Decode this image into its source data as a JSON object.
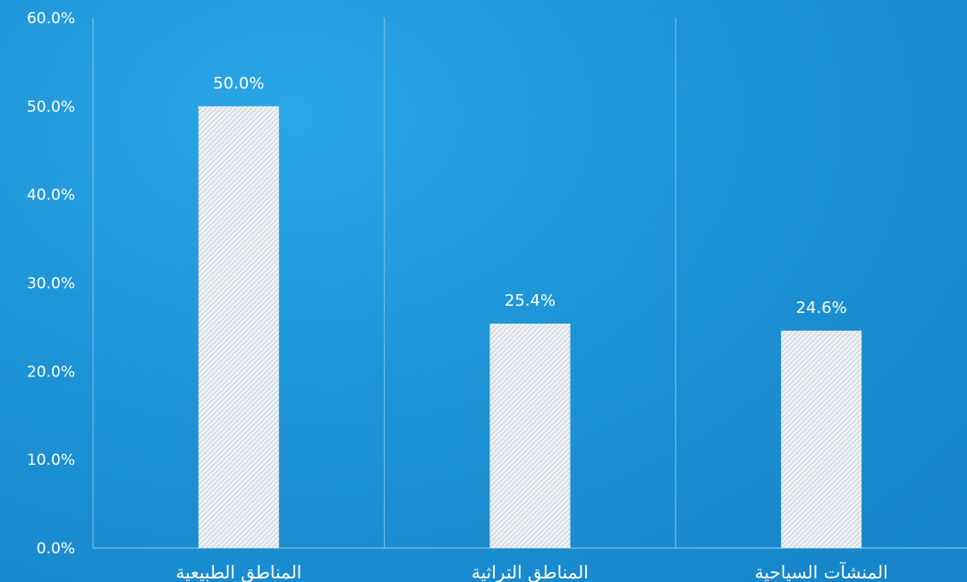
{
  "chart_data": {
    "type": "bar",
    "categories": [
      "المناطق الطبيعية",
      "المناطق التراثية",
      "المنشآت السياحية"
    ],
    "values": [
      50.0,
      25.4,
      24.6
    ],
    "value_labels": [
      "50.0%",
      "25.4%",
      "24.6%"
    ],
    "title": "",
    "xlabel": "",
    "ylabel": "",
    "ylim": [
      0,
      60
    ],
    "y_ticks": [
      0,
      10,
      20,
      30,
      40,
      50,
      60
    ],
    "y_tick_labels": [
      "0.0%",
      "10.0%",
      "20.0%",
      "30.0%",
      "40.0%",
      "50.0%",
      "60.0%"
    ],
    "grid": "vertical separators",
    "legend": "none",
    "colors": {
      "background": "#1d93d6",
      "bar_fill": "#e9eef2",
      "bar_hatch": "#b9c6cf",
      "gridline": "#7cc4ec",
      "text": "#ffffff"
    }
  }
}
